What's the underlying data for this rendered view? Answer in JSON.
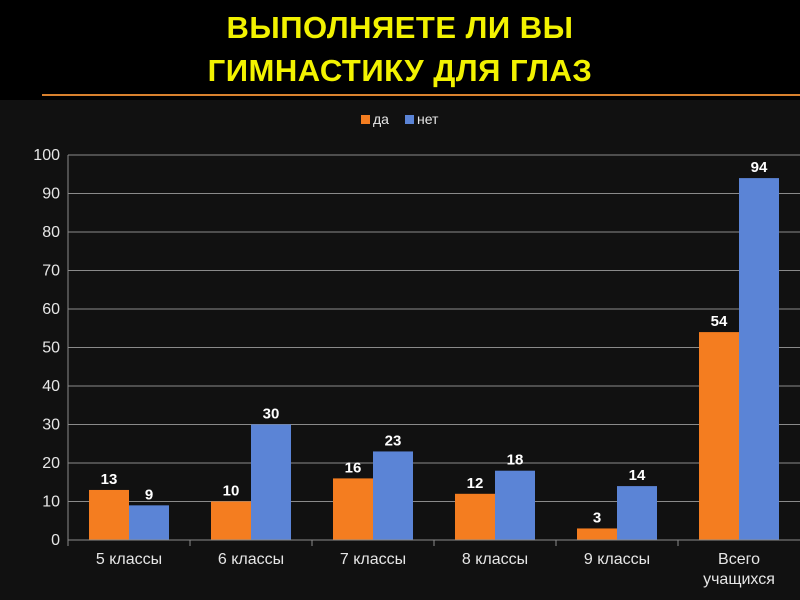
{
  "title": {
    "lines": [
      "ВЫПОЛНЯЕТЕ ЛИ ВЫ",
      "ГИМНАСТИКУ ДЛЯ ГЛАЗ"
    ]
  },
  "chart_data": {
    "type": "bar",
    "categories": [
      [
        "5 классы"
      ],
      [
        "6 классы"
      ],
      [
        "7 классы"
      ],
      [
        "8 классы"
      ],
      [
        "9 классы"
      ],
      [
        "Всего",
        "учащихся"
      ]
    ],
    "series": [
      {
        "name": "да",
        "values": [
          13,
          10,
          16,
          12,
          3,
          54
        ],
        "color": "#f47d20"
      },
      {
        "name": "нет",
        "values": [
          9,
          30,
          23,
          18,
          14,
          94
        ],
        "color": "#5b84d6"
      }
    ],
    "ylim": [
      0,
      100
    ],
    "yticks": [
      0,
      10,
      20,
      30,
      40,
      50,
      60,
      70,
      80,
      90,
      100
    ],
    "grid": true,
    "legend": "top-center",
    "data_labels": true
  }
}
